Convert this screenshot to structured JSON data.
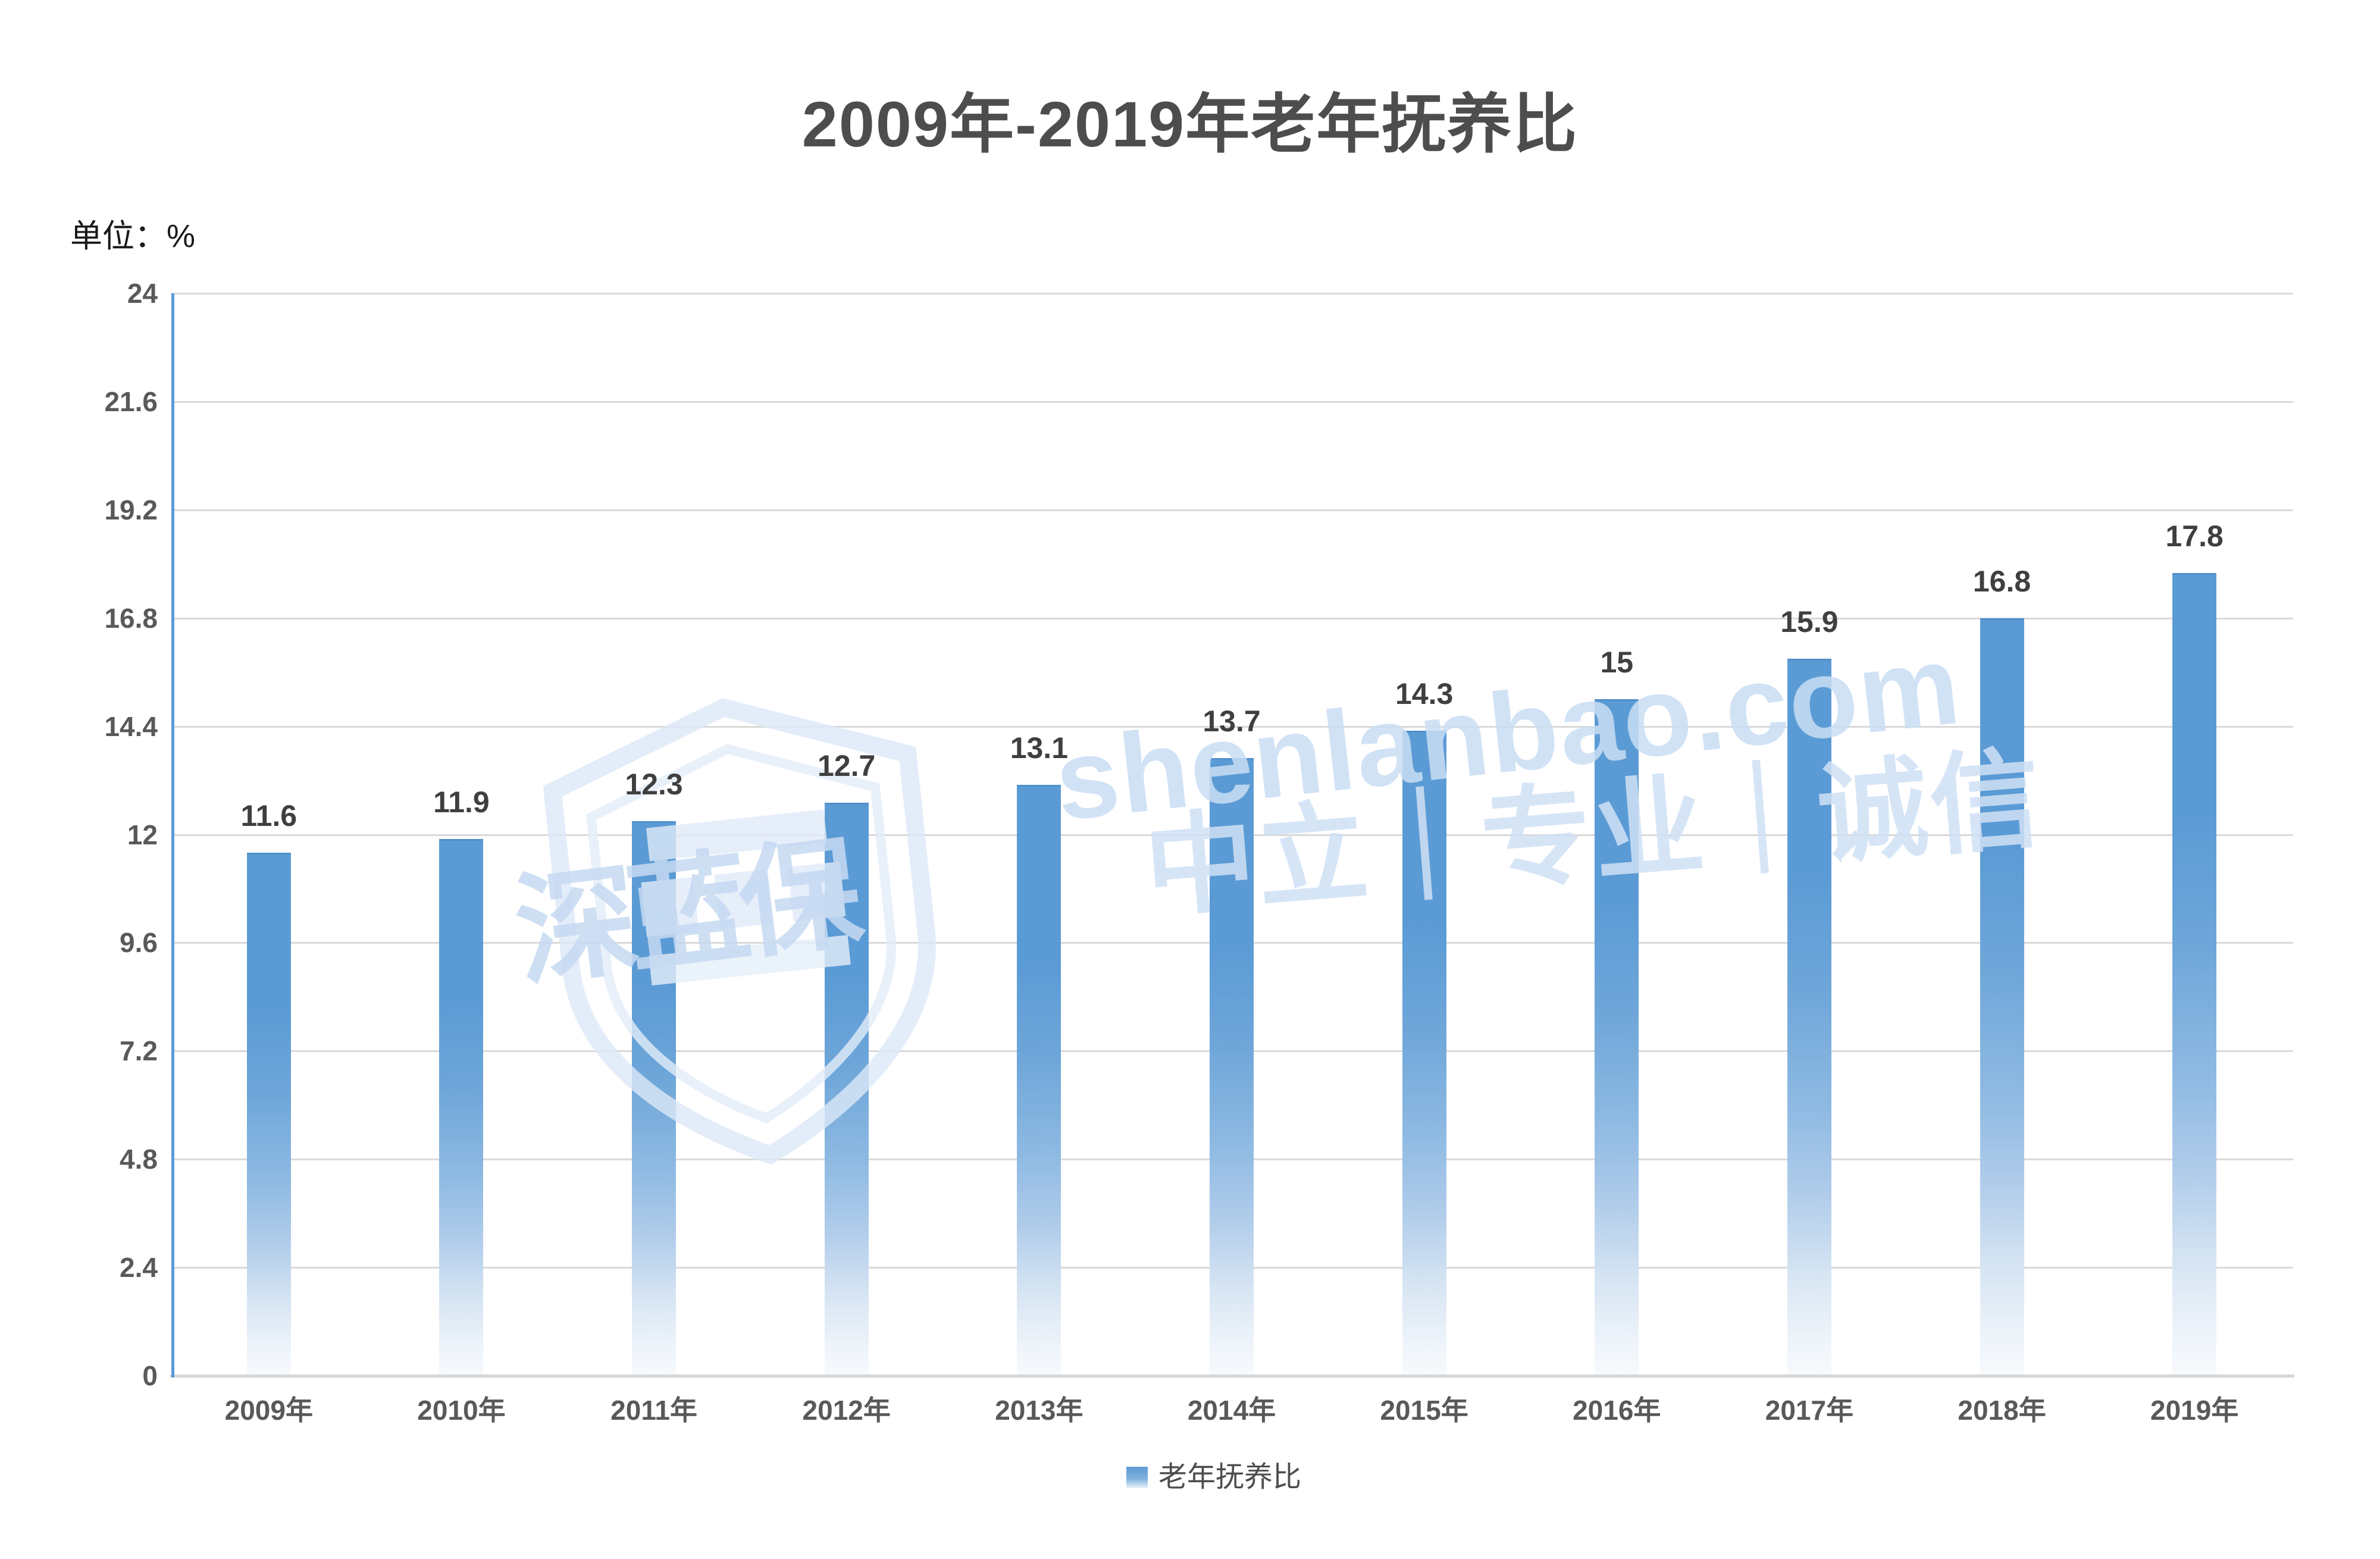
{
  "header": {
    "title": "2009年-2019年老年抚养比",
    "unit_label": "单位：%"
  },
  "chart_data": {
    "type": "bar",
    "title": "2009年-2019年老年抚养比",
    "unit": "%",
    "categories": [
      "2009年",
      "2010年",
      "2011年",
      "2012年",
      "2013年",
      "2014年",
      "2015年",
      "2016年",
      "2017年",
      "2018年",
      "2019年"
    ],
    "values": [
      11.6,
      11.9,
      12.3,
      12.7,
      13.1,
      13.7,
      14.3,
      15,
      15.9,
      16.8,
      17.8
    ],
    "value_labels": [
      "11.6",
      "11.9",
      "12.3",
      "12.7",
      "13.1",
      "13.7",
      "14.3",
      "15",
      "15.9",
      "16.8",
      "17.8"
    ],
    "series_name": "老年抚养比",
    "xlabel": "",
    "ylabel": "",
    "ylim": [
      0,
      24
    ],
    "yticks": [
      0,
      2.4,
      4.8,
      7.2,
      9.6,
      12,
      14.4,
      16.8,
      19.2,
      21.6,
      24
    ],
    "ytick_labels": [
      "0",
      "2.4",
      "4.8",
      "7.2",
      "9.6",
      "12",
      "14.4",
      "16.8",
      "19.2",
      "21.6",
      "24"
    ],
    "grid": true,
    "legend_position": "bottom"
  },
  "legend": {
    "label": "老年抚养比"
  },
  "watermark": {
    "logo_text": "深蓝保",
    "line1": "shenlanbao.com",
    "line2": "中立｜专业｜诚信"
  },
  "colors": {
    "bar": "#5b9bd5",
    "bar_fade": "#f7fafd",
    "gridline": "#d9d9d9",
    "y_axis": "#5b9bd5",
    "x_axis": "#d6d6d6",
    "title_text": "#4d4d4d",
    "tick_text": "#595959",
    "value_text": "#3f3f3f",
    "watermark_blue": "#c9def4"
  }
}
